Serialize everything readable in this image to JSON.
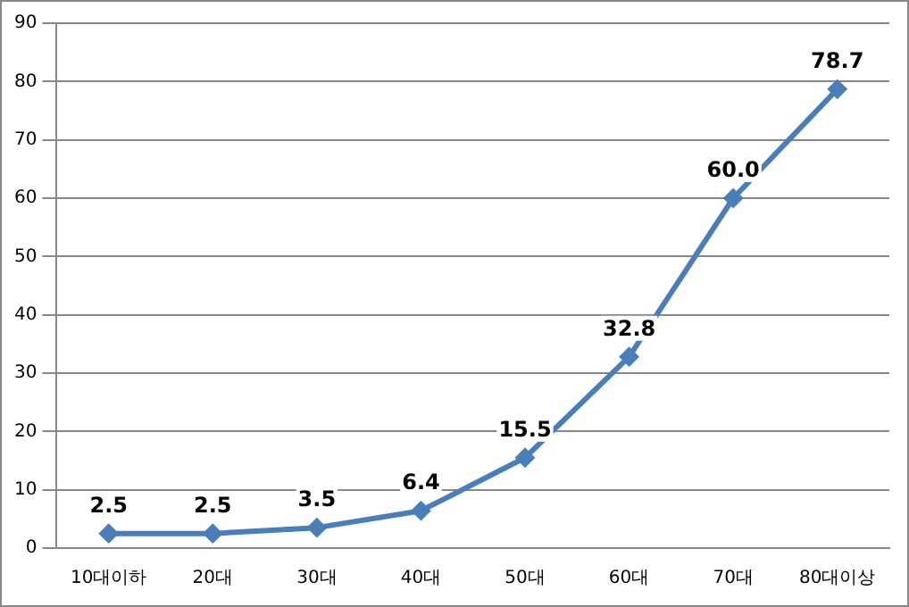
{
  "chart_data": {
    "type": "line",
    "categories": [
      "10대이하",
      "20대",
      "30대",
      "40대",
      "50대",
      "60대",
      "70대",
      "80대이상"
    ],
    "series": [
      {
        "color": "#4a7ebb",
        "values": [
          2.5,
          2.5,
          3.5,
          6.4,
          15.5,
          32.8,
          60.0,
          78.7
        ]
      }
    ],
    "value_labels": [
      "2.5",
      "2.5",
      "3.5",
      "6.4",
      "15.5",
      "32.8",
      "60.0",
      "78.7"
    ],
    "ylim": [
      0,
      90
    ],
    "yticks": [
      0,
      10,
      20,
      30,
      40,
      50,
      60,
      70,
      80,
      90
    ],
    "grid": "y",
    "legend": false,
    "marker": "diamond",
    "line_style": "solid"
  }
}
